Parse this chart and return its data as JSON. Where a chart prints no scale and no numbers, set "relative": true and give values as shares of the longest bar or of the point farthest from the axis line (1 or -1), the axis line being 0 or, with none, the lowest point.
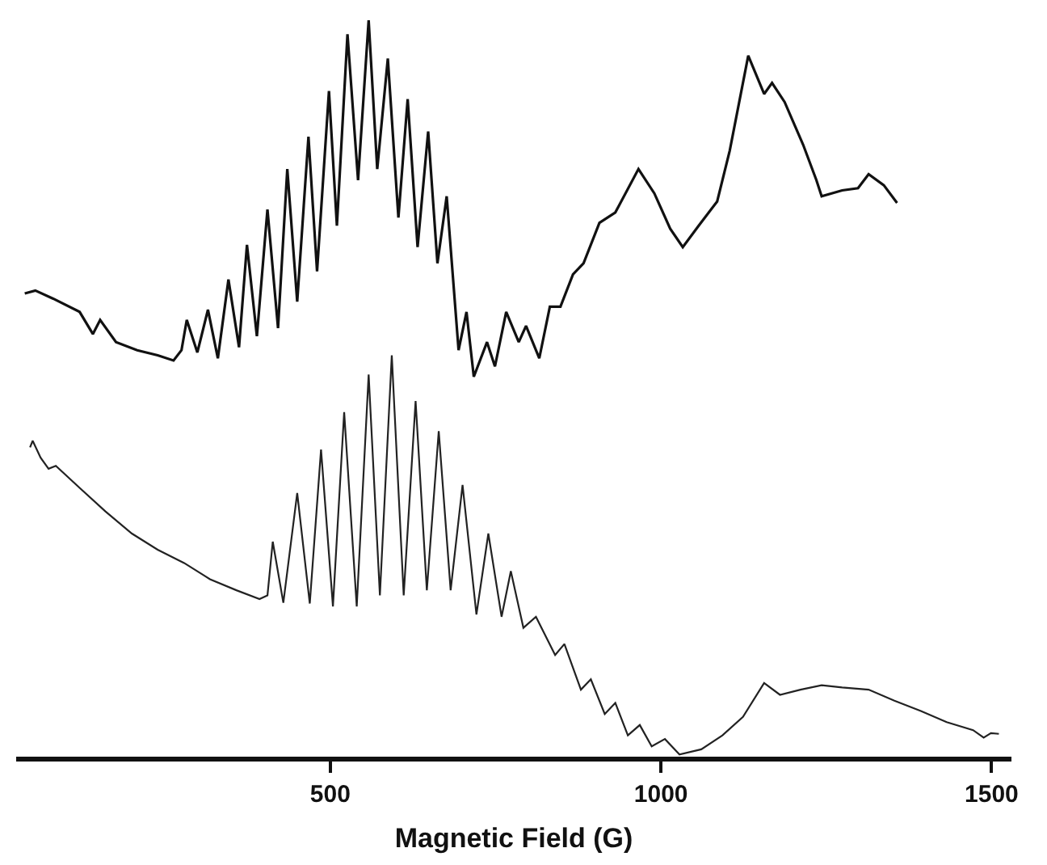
{
  "chart_data": {
    "type": "line",
    "xlabel": "Magnetic Field (G)",
    "relative": true,
    "tick_labels": "x",
    "marker": "none",
    "line_style": "solid",
    "xlim": [
      25,
      1530
    ],
    "xticks": [
      500,
      1000,
      1500
    ],
    "series": [
      {
        "color": "#111111",
        "x": [
          38,
          54,
          81,
          121,
          141,
          152,
          176,
          208,
          239,
          263,
          275,
          283,
          299,
          315,
          330,
          346,
          362,
          374,
          389,
          405,
          421,
          435,
          450,
          467,
          480,
          498,
          510,
          526,
          542,
          558,
          571,
          587,
          603,
          617,
          632,
          648,
          662,
          676,
          694,
          706,
          717,
          737,
          749,
          766,
          785,
          796,
          816,
          832,
          848,
          867,
          883,
          907,
          931,
          966,
          990,
          1014,
          1033,
          1057,
          1085,
          1104,
          1132,
          1156,
          1168,
          1187,
          1215,
          1235,
          1243,
          1274,
          1298,
          1314,
          1337,
          1357
        ],
        "values": [
          0.629,
          0.633,
          0.622,
          0.604,
          0.574,
          0.593,
          0.563,
          0.552,
          0.545,
          0.538,
          0.552,
          0.593,
          0.549,
          0.607,
          0.541,
          0.648,
          0.556,
          0.695,
          0.571,
          0.743,
          0.582,
          0.798,
          0.618,
          0.842,
          0.659,
          0.904,
          0.721,
          0.981,
          0.783,
          1,
          0.798,
          0.948,
          0.732,
          0.893,
          0.692,
          0.849,
          0.67,
          0.761,
          0.552,
          0.604,
          0.516,
          0.563,
          0.53,
          0.604,
          0.563,
          0.585,
          0.541,
          0.611,
          0.611,
          0.655,
          0.67,
          0.725,
          0.739,
          0.798,
          0.765,
          0.717,
          0.692,
          0.721,
          0.754,
          0.823,
          0.952,
          0.9,
          0.915,
          0.889,
          0.831,
          0.783,
          0.761,
          0.769,
          0.772,
          0.791,
          0.776,
          0.752
        ]
      },
      {
        "color": "#222222",
        "x": [
          46,
          50,
          62,
          74,
          85,
          121,
          160,
          200,
          239,
          279,
          318,
          358,
          393,
          405,
          413,
          429,
          450,
          469,
          486,
          504,
          521,
          540,
          558,
          575,
          593,
          611,
          629,
          646,
          664,
          682,
          700,
          721,
          739,
          759,
          773,
          792,
          811,
          840,
          854,
          879,
          894,
          915,
          931,
          950,
          968,
          986,
          1006,
          1028,
          1061,
          1093,
          1124,
          1156,
          1180,
          1211,
          1243,
          1274,
          1314,
          1353,
          1393,
          1432,
          1472,
          1488,
          1499,
          1511
        ],
        "values": [
          0.42,
          0.429,
          0.406,
          0.391,
          0.395,
          0.365,
          0.333,
          0.303,
          0.281,
          0.263,
          0.241,
          0.226,
          0.214,
          0.219,
          0.292,
          0.209,
          0.358,
          0.208,
          0.417,
          0.204,
          0.468,
          0.204,
          0.519,
          0.219,
          0.545,
          0.219,
          0.483,
          0.226,
          0.442,
          0.226,
          0.369,
          0.193,
          0.303,
          0.19,
          0.252,
          0.175,
          0.19,
          0.138,
          0.153,
          0.091,
          0.105,
          0.058,
          0.073,
          0.029,
          0.043,
          0.014,
          0.024,
          0.003,
          0.01,
          0.029,
          0.054,
          0.1,
          0.084,
          0.091,
          0.097,
          0.094,
          0.091,
          0.076,
          0.062,
          0.047,
          0.036,
          0.026,
          0.032,
          0.031
        ]
      }
    ]
  }
}
